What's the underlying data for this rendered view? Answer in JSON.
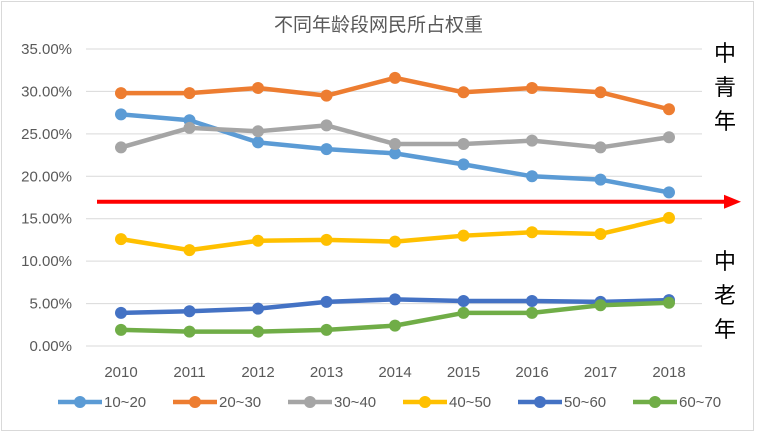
{
  "chart_data": {
    "type": "line",
    "title": "不同年龄段网民所占权重",
    "categories": [
      "2010",
      "2011",
      "2012",
      "2013",
      "2014",
      "2015",
      "2016",
      "2017",
      "2018"
    ],
    "ylim": [
      0,
      35
    ],
    "yticks": [
      "0.00%",
      "5.00%",
      "10.00%",
      "15.00%",
      "20.00%",
      "25.00%",
      "30.00%",
      "35.00%"
    ],
    "grid": true,
    "legend": "bottom",
    "series": [
      {
        "name": "10~20",
        "color": "#5B9BD5",
        "values": [
          27.3,
          26.6,
          24.0,
          23.2,
          22.7,
          21.4,
          20.0,
          19.6,
          18.1
        ]
      },
      {
        "name": "20~30",
        "color": "#ED7D31",
        "values": [
          29.8,
          29.8,
          30.4,
          29.5,
          31.6,
          29.9,
          30.4,
          29.9,
          27.9
        ]
      },
      {
        "name": "30~40",
        "color": "#A5A5A5",
        "values": [
          23.4,
          25.7,
          25.3,
          26.0,
          23.8,
          23.8,
          24.2,
          23.4,
          24.6
        ]
      },
      {
        "name": "40~50",
        "color": "#FFC000",
        "values": [
          12.6,
          11.3,
          12.4,
          12.5,
          12.3,
          13.0,
          13.4,
          13.2,
          15.1
        ]
      },
      {
        "name": "50~60",
        "color": "#4472C4",
        "values": [
          3.9,
          4.1,
          4.4,
          5.2,
          5.5,
          5.3,
          5.3,
          5.2,
          5.4
        ]
      },
      {
        "name": "60~70",
        "color": "#70AD47",
        "values": [
          1.9,
          1.7,
          1.7,
          1.9,
          2.4,
          3.9,
          3.9,
          4.8,
          5.1
        ]
      }
    ],
    "annotations": {
      "threshold_arrow": {
        "y": 17.0,
        "color": "#FF0000"
      },
      "upper_label": "中青年",
      "lower_label": "中老年"
    }
  }
}
